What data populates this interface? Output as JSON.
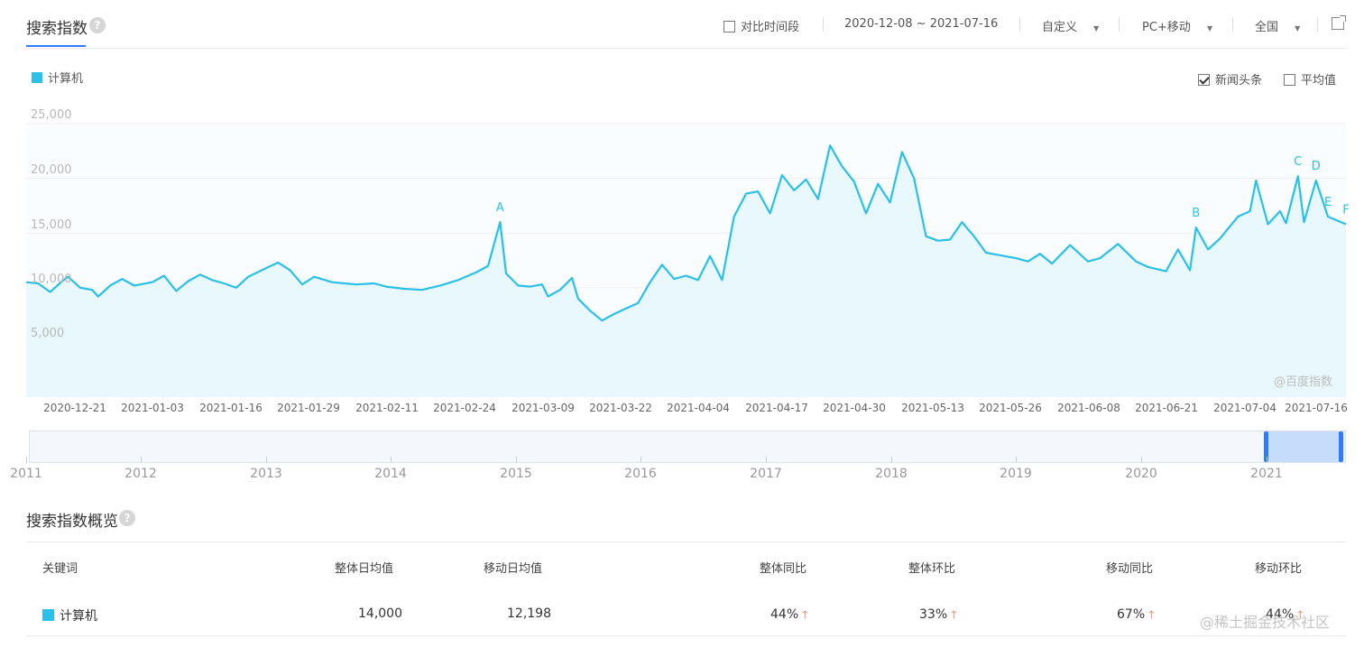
{
  "header": {
    "title": "搜索指数",
    "compare_label": "对比时间段",
    "date_range": "2020-12-08 ~ 2021-07-16",
    "range_mode": "自定义",
    "device": "PC+移动",
    "region": "全国"
  },
  "legend": {
    "keyword": "计算机",
    "color": "#29c0ea"
  },
  "options": {
    "news_label": "新闻头条",
    "news_checked": true,
    "avg_label": "平均值",
    "avg_checked": false
  },
  "watermark": "@百度指数",
  "navigator_years": [
    "2011",
    "2012",
    "2013",
    "2014",
    "2015",
    "2016",
    "2017",
    "2018",
    "2019",
    "2020",
    "2021"
  ],
  "chart_data": {
    "type": "area",
    "ylim": [
      0,
      25000
    ],
    "yticks": [
      "25,000",
      "20,000",
      "15,000",
      "10,000",
      "5,000"
    ],
    "xtick_labels": [
      "2020-12-21",
      "2021-01-03",
      "2021-01-16",
      "2021-01-29",
      "2021-02-11",
      "2021-02-24",
      "2021-03-09",
      "2021-03-22",
      "2021-04-04",
      "2021-04-17",
      "2021-04-30",
      "2021-05-13",
      "2021-05-26",
      "2021-06-08",
      "2021-06-21",
      "2021-07-04",
      "2021-07-16"
    ],
    "start_date": "2020-12-08",
    "end_date": "2021-07-16",
    "series": [
      {
        "name": "计算机",
        "color": "#29c0ea",
        "points": [
          [
            "2020-12-08",
            10500
          ],
          [
            "2020-12-10",
            10400
          ],
          [
            "2020-12-12",
            9600
          ],
          [
            "2020-12-14",
            10600
          ],
          [
            "2020-12-15",
            11000
          ],
          [
            "2020-12-17",
            10000
          ],
          [
            "2020-12-19",
            9800
          ],
          [
            "2020-12-20",
            9200
          ],
          [
            "2020-12-22",
            10200
          ],
          [
            "2020-12-24",
            10800
          ],
          [
            "2020-12-26",
            10200
          ],
          [
            "2020-12-29",
            10500
          ],
          [
            "2020-12-31",
            11100
          ],
          [
            "2021-01-02",
            9700
          ],
          [
            "2021-01-04",
            10600
          ],
          [
            "2021-01-06",
            11200
          ],
          [
            "2021-01-08",
            10700
          ],
          [
            "2021-01-10",
            10400
          ],
          [
            "2021-01-12",
            10000
          ],
          [
            "2021-01-14",
            11000
          ],
          [
            "2021-01-17",
            11800
          ],
          [
            "2021-01-19",
            12300
          ],
          [
            "2021-01-21",
            11600
          ],
          [
            "2021-01-23",
            10300
          ],
          [
            "2021-01-25",
            11000
          ],
          [
            "2021-01-28",
            10500
          ],
          [
            "2021-02-01",
            10300
          ],
          [
            "2021-02-04",
            10400
          ],
          [
            "2021-02-06",
            10100
          ],
          [
            "2021-02-09",
            9900
          ],
          [
            "2021-02-12",
            9800
          ],
          [
            "2021-02-15",
            10200
          ],
          [
            "2021-02-18",
            10700
          ],
          [
            "2021-02-21",
            11400
          ],
          [
            "2021-02-23",
            12000
          ],
          [
            "2021-02-25",
            16000
          ],
          [
            "2021-02-26",
            11300
          ],
          [
            "2021-02-28",
            10200
          ],
          [
            "2021-03-02",
            10100
          ],
          [
            "2021-03-04",
            10300
          ],
          [
            "2021-03-05",
            9200
          ],
          [
            "2021-03-07",
            9800
          ],
          [
            "2021-03-09",
            10900
          ],
          [
            "2021-03-10",
            9000
          ],
          [
            "2021-03-12",
            7900
          ],
          [
            "2021-03-14",
            7000
          ],
          [
            "2021-03-16",
            7600
          ],
          [
            "2021-03-18",
            8100
          ],
          [
            "2021-03-20",
            8600
          ],
          [
            "2021-03-22",
            10500
          ],
          [
            "2021-03-24",
            12100
          ],
          [
            "2021-03-26",
            10800
          ],
          [
            "2021-03-28",
            11100
          ],
          [
            "2021-03-30",
            10700
          ],
          [
            "2021-04-01",
            12900
          ],
          [
            "2021-04-03",
            10700
          ],
          [
            "2021-04-05",
            16500
          ],
          [
            "2021-04-07",
            18600
          ],
          [
            "2021-04-09",
            18800
          ],
          [
            "2021-04-11",
            16800
          ],
          [
            "2021-04-13",
            20300
          ],
          [
            "2021-04-15",
            18900
          ],
          [
            "2021-04-17",
            19900
          ],
          [
            "2021-04-19",
            18100
          ],
          [
            "2021-04-21",
            23000
          ],
          [
            "2021-04-23",
            21100
          ],
          [
            "2021-04-25",
            19700
          ],
          [
            "2021-04-27",
            16800
          ],
          [
            "2021-04-29",
            19500
          ],
          [
            "2021-05-01",
            17800
          ],
          [
            "2021-05-03",
            22400
          ],
          [
            "2021-05-05",
            20000
          ],
          [
            "2021-05-07",
            14700
          ],
          [
            "2021-05-09",
            14300
          ],
          [
            "2021-05-11",
            14400
          ],
          [
            "2021-05-13",
            16000
          ],
          [
            "2021-05-15",
            14700
          ],
          [
            "2021-05-17",
            13200
          ],
          [
            "2021-05-19",
            13000
          ],
          [
            "2021-05-22",
            12700
          ],
          [
            "2021-05-24",
            12400
          ],
          [
            "2021-05-26",
            13100
          ],
          [
            "2021-05-28",
            12200
          ],
          [
            "2021-05-31",
            13900
          ],
          [
            "2021-06-03",
            12400
          ],
          [
            "2021-06-05",
            12700
          ],
          [
            "2021-06-08",
            14000
          ],
          [
            "2021-06-11",
            12400
          ],
          [
            "2021-06-13",
            11900
          ],
          [
            "2021-06-16",
            11500
          ],
          [
            "2021-06-18",
            13500
          ],
          [
            "2021-06-20",
            11600
          ],
          [
            "2021-06-21",
            15500
          ],
          [
            "2021-06-23",
            13500
          ],
          [
            "2021-06-25",
            14500
          ],
          [
            "2021-06-28",
            16500
          ],
          [
            "2021-06-30",
            17000
          ],
          [
            "2021-07-01",
            19800
          ],
          [
            "2021-07-03",
            15800
          ],
          [
            "2021-07-05",
            17000
          ],
          [
            "2021-07-06",
            15900
          ],
          [
            "2021-07-08",
            20200
          ],
          [
            "2021-07-09",
            16000
          ],
          [
            "2021-07-11",
            19800
          ],
          [
            "2021-07-13",
            16500
          ],
          [
            "2021-07-16",
            15800
          ]
        ]
      }
    ],
    "annotations": [
      {
        "label": "A",
        "date": "2021-02-25",
        "value": 16000
      },
      {
        "label": "B",
        "date": "2021-06-21",
        "value": 15500
      },
      {
        "label": "C",
        "date": "2021-07-08",
        "value": 20200
      },
      {
        "label": "D",
        "date": "2021-07-11",
        "value": 19800
      },
      {
        "label": "E",
        "date": "2021-07-13",
        "value": 16500
      },
      {
        "label": "F",
        "date": "2021-07-16",
        "value": 15800
      }
    ]
  },
  "overview": {
    "title": "搜索指数概览",
    "headers": [
      "关键词",
      "整体日均值",
      "移动日均值",
      "整体同比",
      "整体环比",
      "移动同比",
      "移动环比"
    ],
    "row": {
      "keyword": "计算机",
      "overall_avg": "14,000",
      "mobile_avg": "12,198",
      "overall_yoy": "44%",
      "overall_mom": "33%",
      "mobile_yoy": "67%",
      "mobile_mom": "44%"
    }
  },
  "site_watermark": "@稀土掘金技术社区"
}
